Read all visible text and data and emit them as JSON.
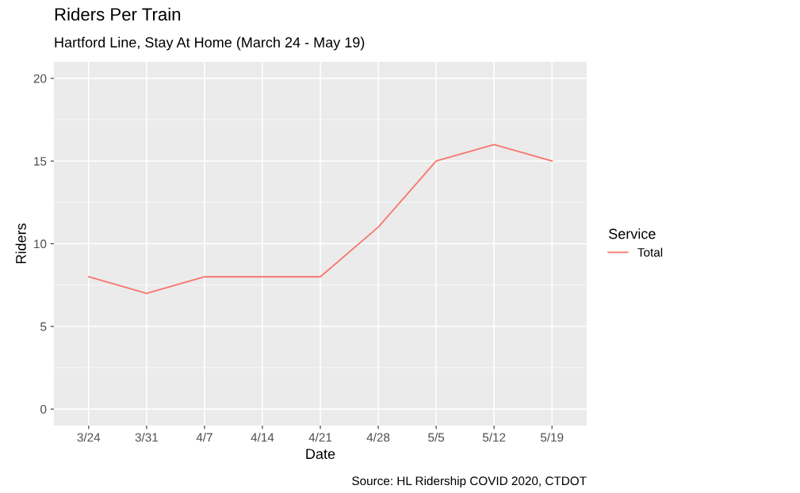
{
  "chart_data": {
    "type": "line",
    "title": "Riders Per Train",
    "subtitle": "Hartford Line, Stay At Home (March 24 - May 19)",
    "xlabel": "Date",
    "ylabel": "Riders",
    "legend_title": "Service",
    "annotations": [
      "Source: HL Ridership COVID 2020, CTDOT"
    ],
    "categories": [
      "3/24",
      "3/31",
      "4/7",
      "4/14",
      "4/21",
      "4/28",
      "5/5",
      "5/12",
      "5/19"
    ],
    "series": [
      {
        "name": "Total",
        "color": "#f8766d",
        "values": [
          8,
          7,
          8,
          8,
          8,
          11,
          15,
          16,
          15
        ]
      }
    ],
    "ylim": [
      -1,
      21
    ],
    "yticks": [
      0,
      5,
      10,
      15,
      20
    ],
    "grid": true,
    "legend": "right",
    "marker": "none",
    "line_style": "solid"
  }
}
